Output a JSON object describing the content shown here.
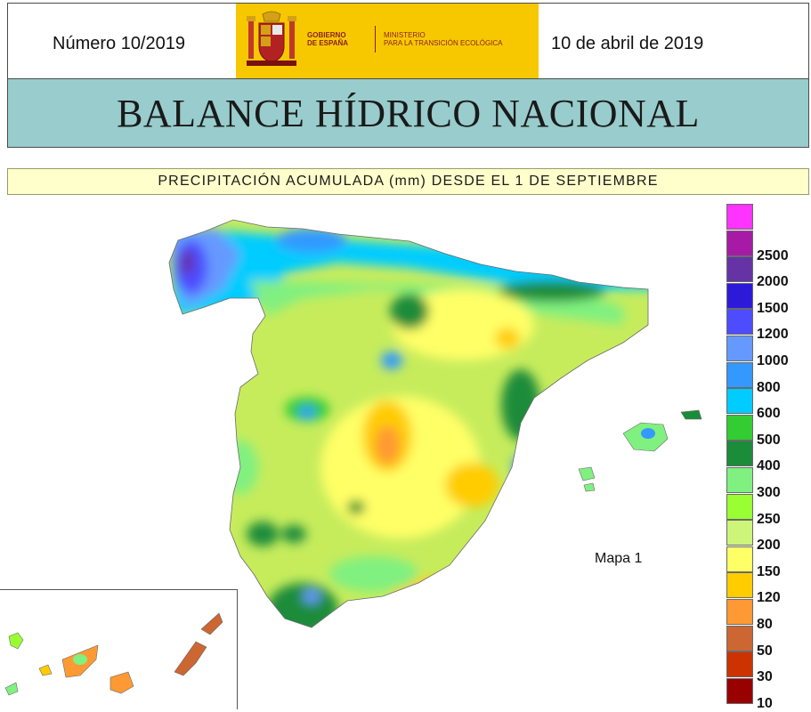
{
  "header": {
    "issue": "Número 10/2019",
    "date": "10 de abril de 2019",
    "logo": {
      "gobierno_line1": "GOBIERNO",
      "gobierno_line2": "DE ESPAÑA",
      "ministerio_line1": "MINISTERIO",
      "ministerio_line2": "PARA LA TRANSICIÓN ECOLÓGICA",
      "background": "#f7c800"
    }
  },
  "title": "BALANCE HÍDRICO NACIONAL",
  "subtitle": "PRECIPITACIÓN ACUMULADA (mm) DESDE EL 1 DE SEPTIEMBRE",
  "map": {
    "label": "Mapa 1",
    "land_base_color": "#c6ec5c",
    "inset_regions": [
      "Islas Canarias"
    ]
  },
  "legend": {
    "unit": "mm",
    "classes": [
      {
        "label": "",
        "color": "#ff33ff"
      },
      {
        "label": "2500",
        "color": "#a61aa6"
      },
      {
        "label": "2000",
        "color": "#6633a6"
      },
      {
        "label": "1500",
        "color": "#2d1ad9"
      },
      {
        "label": "1200",
        "color": "#4d4dff"
      },
      {
        "label": "1000",
        "color": "#6699ff"
      },
      {
        "label": "800",
        "color": "#3399ff"
      },
      {
        "label": "600",
        "color": "#00ccff"
      },
      {
        "label": "500",
        "color": "#33cc33"
      },
      {
        "label": "400",
        "color": "#1a8c3a"
      },
      {
        "label": "300",
        "color": "#80f080"
      },
      {
        "label": "250",
        "color": "#99ff33"
      },
      {
        "label": "200",
        "color": "#ccf57a"
      },
      {
        "label": "150",
        "color": "#ffff66"
      },
      {
        "label": "120",
        "color": "#ffcc00"
      },
      {
        "label": "80",
        "color": "#ff9933"
      },
      {
        "label": "50",
        "color": "#cc6633"
      },
      {
        "label": "30",
        "color": "#cc3300"
      },
      {
        "label": "10",
        "color": "#990000"
      }
    ]
  }
}
